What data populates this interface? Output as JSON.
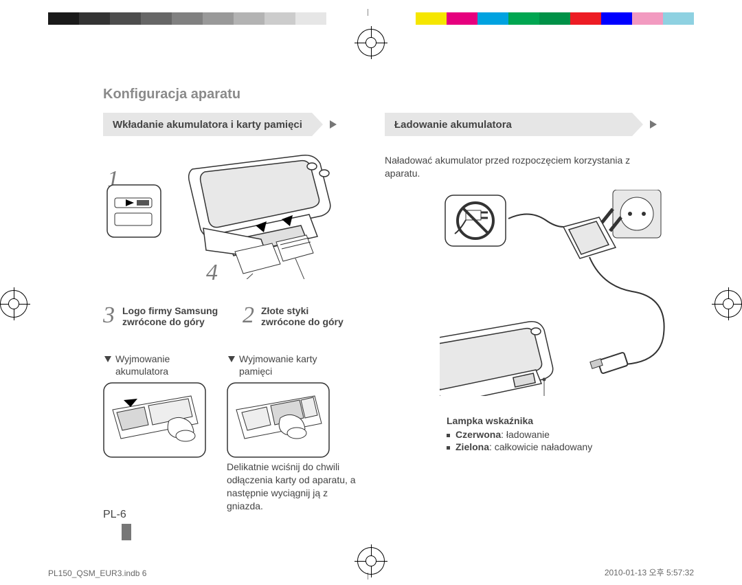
{
  "colorbar": {
    "left": [
      "#1a1a1a",
      "#333333",
      "#4d4d4d",
      "#666666",
      "#808080",
      "#999999",
      "#b3b3b3",
      "#cccccc",
      "#e6e6e6",
      "#ffffff"
    ],
    "right": [
      "#ffffff",
      "#f5e600",
      "#e6007e",
      "#00a2e0",
      "#00a651",
      "#009147",
      "#ed1c24",
      "#0000ff",
      "#f29ac0",
      "#8ed1e1"
    ]
  },
  "title": "Konfiguracja aparatu",
  "banner1": "Wkładanie akumulatora i karty pamięci",
  "banner2": "Ładowanie akumulatora",
  "steps": {
    "n1": "1",
    "n2": "2",
    "n3": "3",
    "n4": "4"
  },
  "labels": {
    "logo_l1": "Logo firmy Samsung",
    "logo_l2": "zwrócone do góry",
    "gold_l1": "Złote styki",
    "gold_l2": "zwrócone do góry",
    "rem_bat_l1": "Wyjmowanie",
    "rem_bat_l2": "akumulatora",
    "rem_card_l1": "Wyjmowanie karty",
    "rem_card_l2": "pamięci",
    "card_note": "Delikatnie wciśnij do chwili odłączenia karty od aparatu, a następnie wyciągnij ją z gniazda."
  },
  "charge": {
    "intro": "Naładować akumulator przed rozpoczęciem korzystania z aparatu.",
    "lamp_h": "Lampka wskaźnika",
    "red_b": "Czerwona",
    "red_t": ": ładowanie",
    "green_b": "Zielona",
    "green_t": ": całkowicie naładowany"
  },
  "page": "PL-6",
  "footer_l": "PL150_QSM_EUR3.indb   6",
  "footer_r": "2010-01-13   오후 5:57:32"
}
